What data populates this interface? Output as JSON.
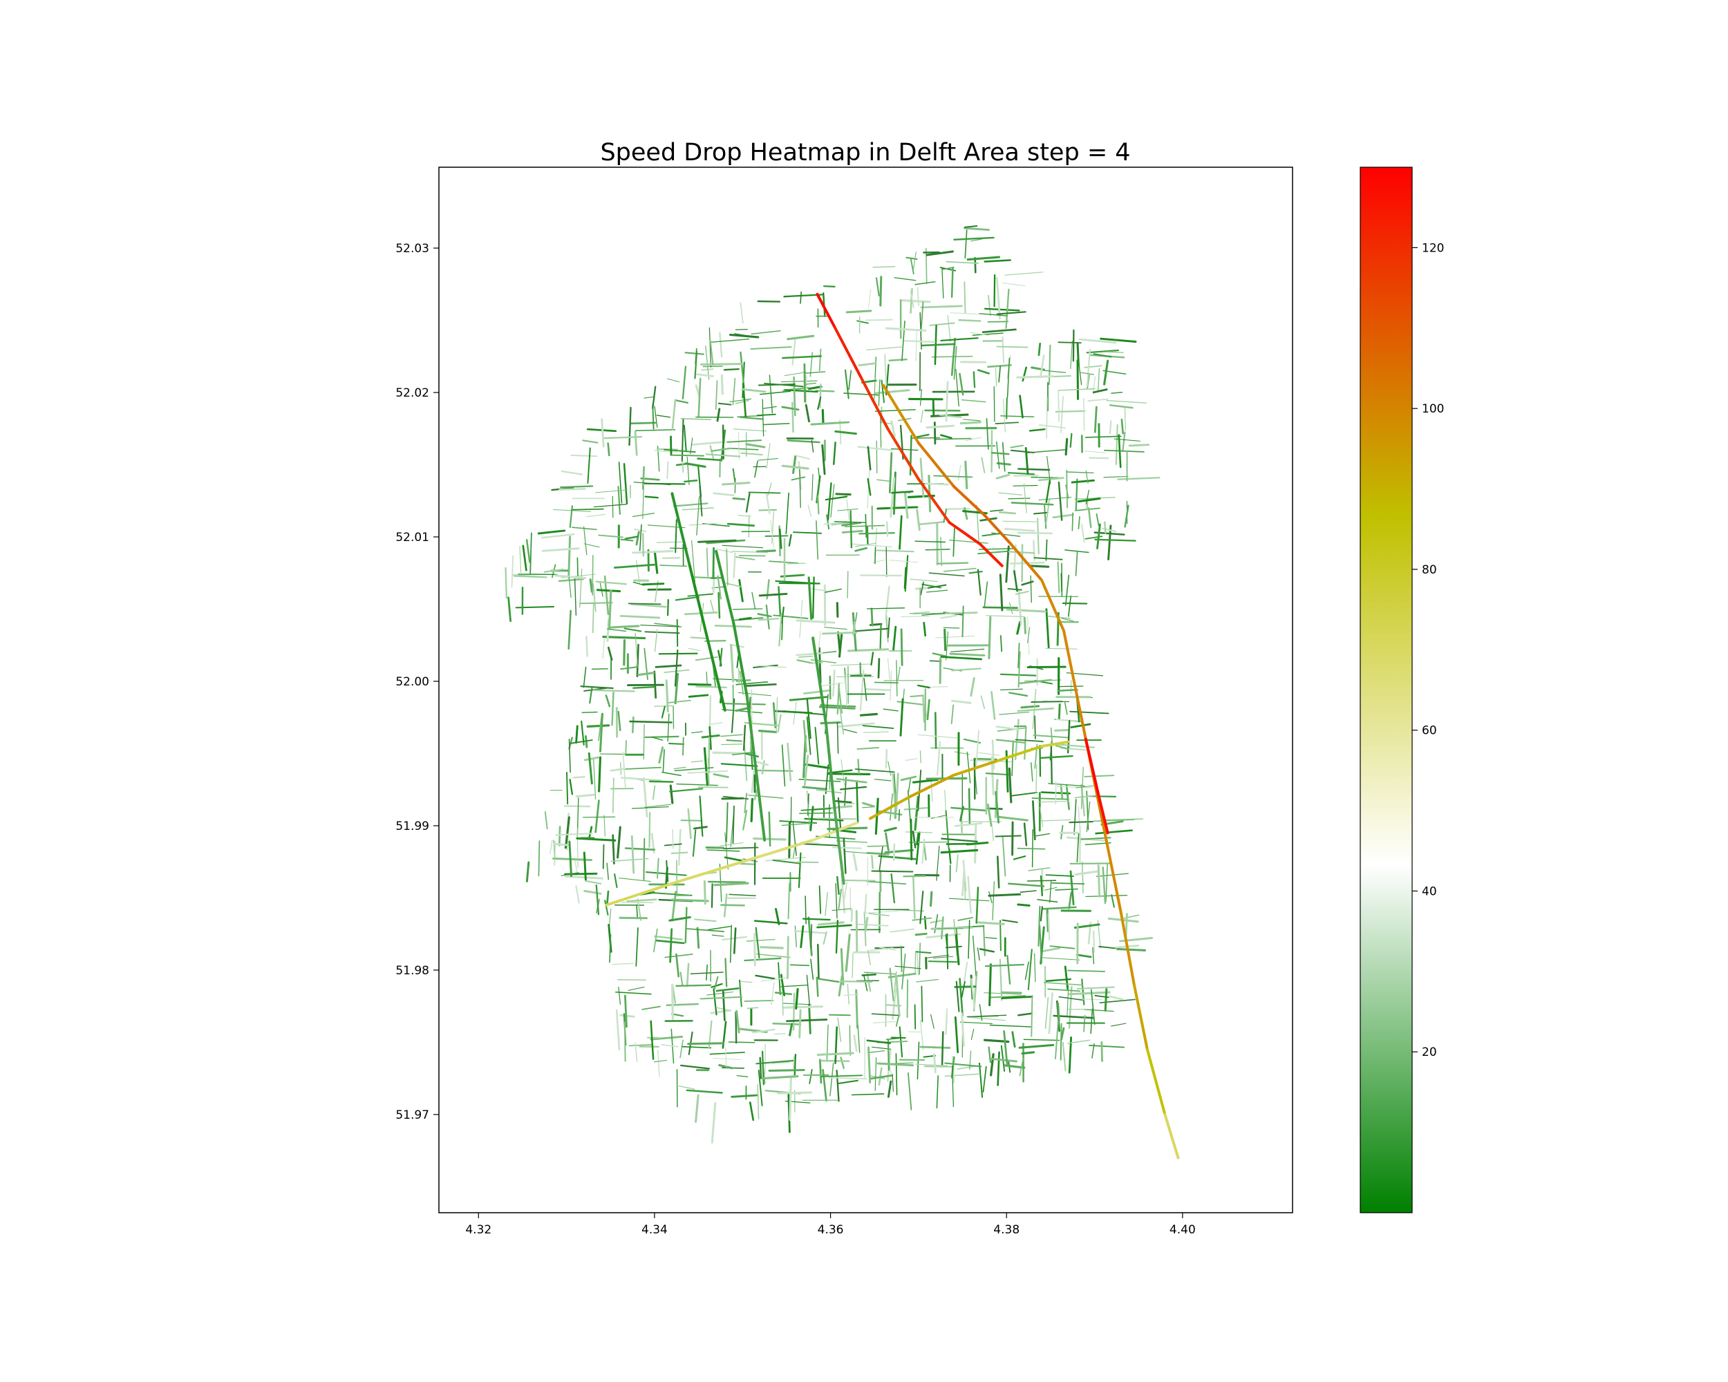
{
  "chart_data": {
    "type": "heatmap",
    "title": "Speed Drop Heatmap in Delft Area step = 4",
    "xlabel": "",
    "ylabel": "",
    "xlim": [
      4.3155,
      4.4125
    ],
    "ylim": [
      51.9632,
      52.0356
    ],
    "x_ticks": [
      "4.32",
      "4.34",
      "4.36",
      "4.38",
      "4.40"
    ],
    "y_ticks": [
      "51.97",
      "51.98",
      "51.99",
      "52.00",
      "52.01",
      "52.02",
      "52.03"
    ],
    "grid": false,
    "legend": "none",
    "colorbar": {
      "range": [
        0,
        130
      ],
      "ticks": [
        "20",
        "40",
        "60",
        "80",
        "100",
        "120"
      ],
      "colors": [
        "#008000",
        "#ffffff",
        "#c0c000",
        "#ff0000"
      ]
    },
    "series": [
      {
        "values": [
          [
            4.3585,
            52.0268,
            130
          ],
          [
            4.3605,
            52.0245,
            125
          ],
          [
            4.3635,
            52.021,
            120
          ],
          [
            4.3665,
            52.0175,
            118
          ],
          [
            4.37,
            52.014,
            115
          ],
          [
            4.3735,
            52.011,
            120
          ],
          [
            4.377,
            52.0095,
            125
          ],
          [
            4.3795,
            52.008,
            122
          ]
        ]
      },
      {
        "values": [
          [
            4.366,
            52.0205,
            95
          ],
          [
            4.37,
            52.0165,
            100
          ],
          [
            4.374,
            52.0135,
            105
          ],
          [
            4.3775,
            52.0115,
            108
          ],
          [
            4.3805,
            52.0095,
            105
          ],
          [
            4.384,
            52.007,
            100
          ],
          [
            4.3865,
            52.0035,
            98
          ],
          [
            4.388,
            51.999,
            100
          ],
          [
            4.3895,
            51.9945,
            102
          ],
          [
            4.391,
            51.99,
            100
          ],
          [
            4.393,
            51.984,
            98
          ],
          [
            4.3945,
            51.979,
            96
          ],
          [
            4.396,
            51.9745,
            90
          ],
          [
            4.398,
            51.97,
            80
          ],
          [
            4.3995,
            51.967,
            60
          ]
        ]
      },
      {
        "values": [
          [
            4.389,
            51.996,
            130
          ],
          [
            4.3905,
            51.992,
            128
          ],
          [
            4.3915,
            51.9895,
            125
          ]
        ]
      },
      {
        "values": [
          [
            4.3645,
            51.9905,
            90
          ],
          [
            4.369,
            51.992,
            92
          ],
          [
            4.374,
            51.9935,
            95
          ],
          [
            4.379,
            51.9945,
            88
          ],
          [
            4.384,
            51.9955,
            80
          ],
          [
            4.387,
            51.9958,
            72
          ]
        ]
      },
      {
        "values": [
          [
            4.3345,
            51.9845,
            72
          ],
          [
            4.342,
            51.986,
            70
          ],
          [
            4.35,
            51.9875,
            68
          ],
          [
            4.358,
            51.989,
            65
          ],
          [
            4.363,
            51.9902,
            62
          ]
        ]
      },
      {
        "values": [
          [
            4.347,
            52.009,
            10
          ],
          [
            4.349,
            52.004,
            8
          ],
          [
            4.3505,
            51.999,
            9
          ],
          [
            4.3515,
            51.994,
            12
          ],
          [
            4.3525,
            51.989,
            10
          ]
        ]
      },
      {
        "values": [
          [
            4.342,
            52.013,
            8
          ],
          [
            4.344,
            52.008,
            6
          ],
          [
            4.346,
            52.003,
            5
          ],
          [
            4.348,
            51.998,
            7
          ]
        ]
      },
      {
        "values": [
          [
            4.358,
            52.003,
            12
          ],
          [
            4.3595,
            51.997,
            10
          ],
          [
            4.3605,
            51.991,
            14
          ],
          [
            4.3615,
            51.986,
            15
          ]
        ]
      }
    ]
  }
}
